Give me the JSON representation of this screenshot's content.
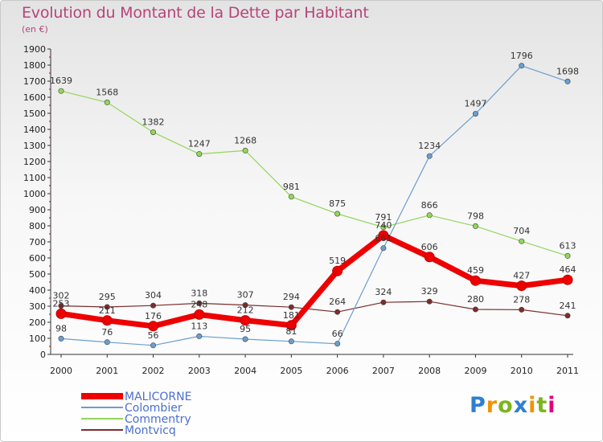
{
  "title": "Evolution du Montant de la Dette par Habitant",
  "unit": "(en €)",
  "logo": {
    "letters": [
      {
        "ch": "P",
        "color": "#2f7fd0"
      },
      {
        "ch": "r",
        "color": "#f39200"
      },
      {
        "ch": "o",
        "color": "#7ab51d"
      },
      {
        "ch": "x",
        "color": "#2f7fd0"
      },
      {
        "ch": "i",
        "color": "#f39200"
      },
      {
        "ch": "t",
        "color": "#7ab51d"
      },
      {
        "ch": "i",
        "color": "#e2007a"
      }
    ]
  },
  "chart_data": {
    "type": "line",
    "title": "Evolution du Montant de la Dette par Habitant",
    "xlabel": "",
    "ylabel": "(en €)",
    "x": [
      "2000",
      "2001",
      "2002",
      "2003",
      "2004",
      "2005",
      "2006",
      "2007",
      "2008",
      "2009",
      "2010",
      "2011"
    ],
    "ylim": [
      0,
      1900
    ],
    "yticks": [
      0,
      100,
      200,
      300,
      400,
      500,
      600,
      700,
      800,
      900,
      1000,
      1100,
      1200,
      1300,
      1400,
      1500,
      1600,
      1700,
      1800,
      1900
    ],
    "grid": false,
    "legend": "bottom-left",
    "series": [
      {
        "name": "MALICORNE",
        "color": "#ee0000",
        "values": [
          253,
          211,
          176,
          248,
          212,
          181,
          519,
          740,
          606,
          459,
          427,
          464
        ]
      },
      {
        "name": "Colombier",
        "color": "#6b9ecf",
        "values": [
          98,
          76,
          56,
          113,
          95,
          81,
          66,
          661,
          1234,
          1497,
          1796,
          1698
        ]
      },
      {
        "name": "Commentry",
        "color": "#93d65a",
        "values": [
          1639,
          1568,
          1382,
          1247,
          1268,
          981,
          875,
          791,
          866,
          798,
          704,
          613
        ]
      },
      {
        "name": "Montvicq",
        "color": "#7a2e2e",
        "values": [
          302,
          295,
          304,
          318,
          307,
          294,
          264,
          324,
          329,
          280,
          278,
          241
        ]
      }
    ]
  }
}
